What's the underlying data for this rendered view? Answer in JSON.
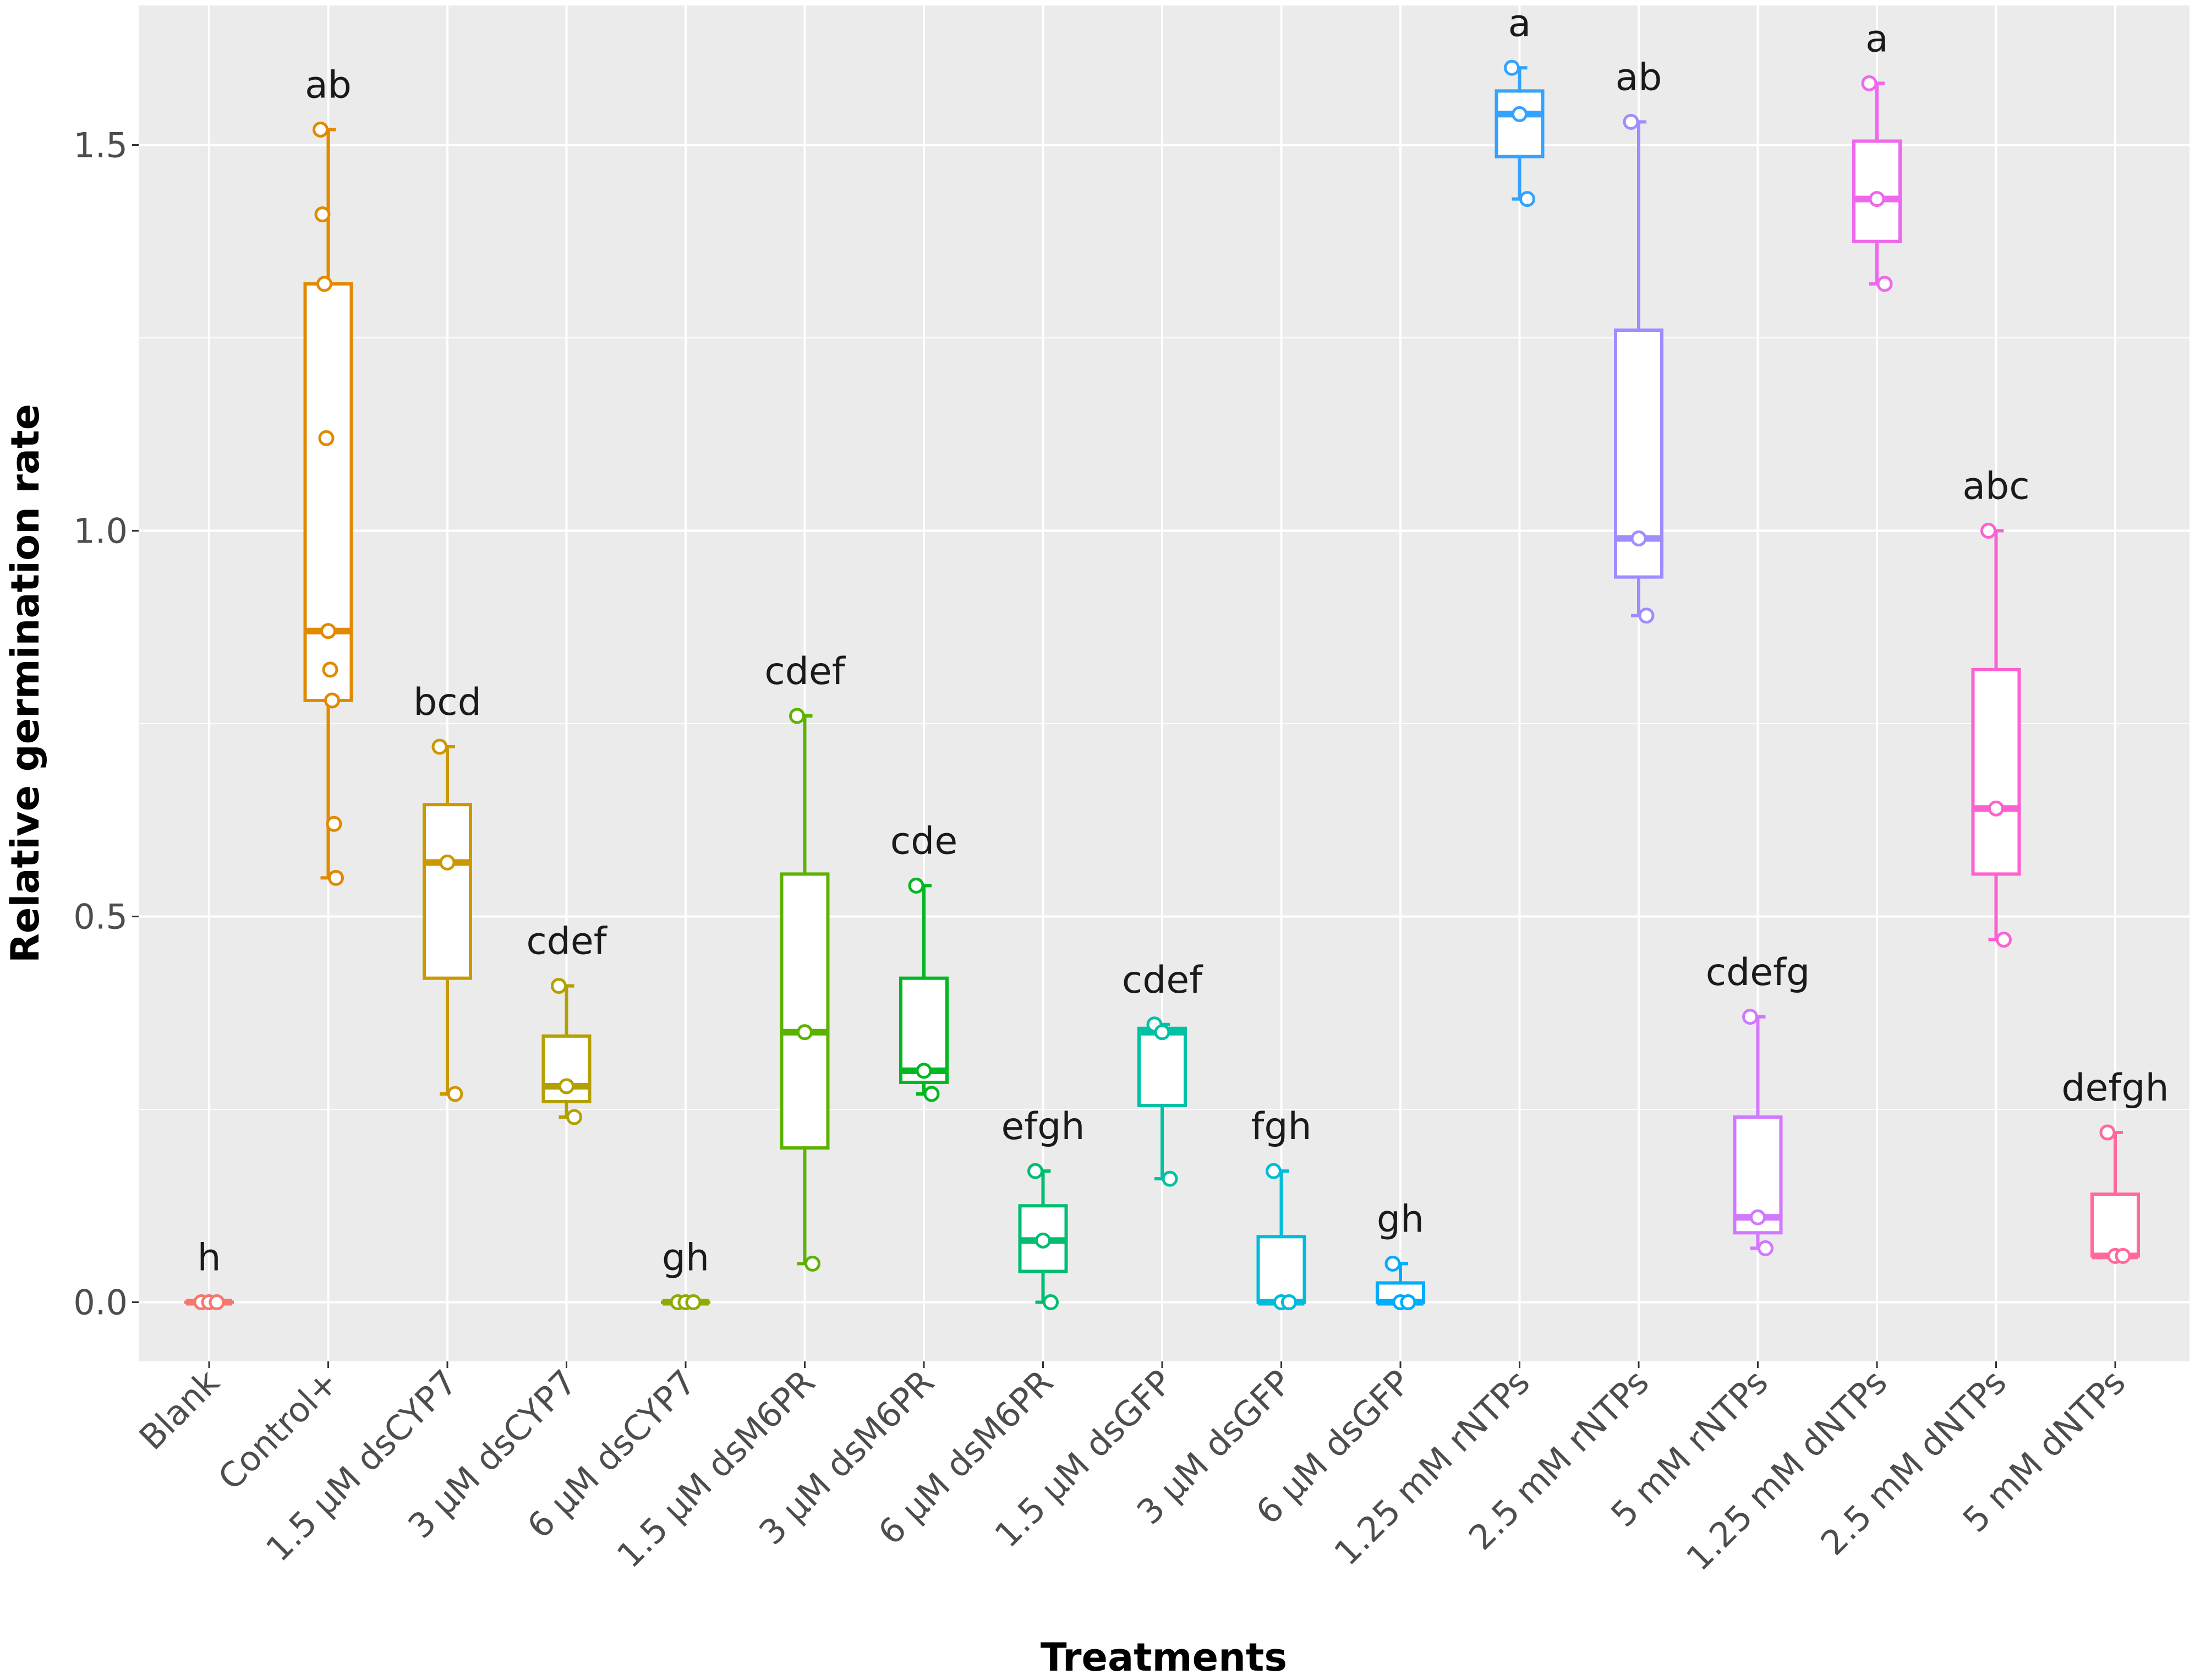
{
  "chart_data": {
    "type": "boxplot",
    "title": "",
    "xlabel": "Treatments",
    "ylabel": "Relative germination rate",
    "ylim": [
      -0.08,
      1.67
    ],
    "yticks": [
      0.0,
      0.5,
      1.0,
      1.5
    ],
    "ytick_labels": [
      "0.0",
      "0.5",
      "1.0",
      "1.5"
    ],
    "grid": true,
    "legend": "none",
    "categories": [
      "Blank",
      "Control+",
      "1.5 μM dsCYP7",
      "3 μM dsCYP7",
      "6 μM dsCYP7",
      "1.5 μM dsM6PR",
      "3 μM dsM6PR",
      "6 μM dsM6PR",
      "1.5 μM dsGFP",
      "3 μM dsGFP",
      "6 μM dsGFP",
      "1.25 mM rNTPs",
      "2.5 mM rNTPs",
      "5 mM rNTPs",
      "1.25 mM dNTPs",
      "2.5 mM dNTPs",
      "5 mM dNTPs"
    ],
    "boxes": [
      {
        "category": "Blank",
        "color": "#F8766D",
        "min": 0.0,
        "q1": 0.0,
        "median": 0.0,
        "q3": 0.0,
        "max": 0.0,
        "points": [
          0.0,
          0.0,
          0.0
        ],
        "letter": "h"
      },
      {
        "category": "Control+",
        "color": "#E18A00",
        "min": 0.55,
        "q1": 0.78,
        "median": 0.87,
        "q3": 1.32,
        "max": 1.52,
        "points": [
          1.52,
          1.41,
          1.32,
          1.12,
          0.87,
          0.82,
          0.78,
          0.62,
          0.55
        ],
        "letter": "ab"
      },
      {
        "category": "1.5 μM dsCYP7",
        "color": "#CC9800",
        "min": 0.27,
        "q1": 0.42,
        "median": 0.57,
        "q3": 0.645,
        "max": 0.72,
        "points": [
          0.72,
          0.57,
          0.27
        ],
        "letter": "bcd"
      },
      {
        "category": "3 μM dsCYP7",
        "color": "#B2A100",
        "min": 0.24,
        "q1": 0.26,
        "median": 0.28,
        "q3": 0.345,
        "max": 0.41,
        "points": [
          0.41,
          0.28,
          0.24
        ],
        "letter": "cdef"
      },
      {
        "category": "6 μM dsCYP7",
        "color": "#90AA00",
        "min": 0.0,
        "q1": 0.0,
        "median": 0.0,
        "q3": 0.0,
        "max": 0.0,
        "points": [
          0.0,
          0.0,
          0.0
        ],
        "letter": "gh"
      },
      {
        "category": "1.5 μM dsM6PR",
        "color": "#5BB300",
        "min": 0.05,
        "q1": 0.2,
        "median": 0.35,
        "q3": 0.555,
        "max": 0.76,
        "points": [
          0.76,
          0.35,
          0.05
        ],
        "letter": "cdef"
      },
      {
        "category": "3 μM dsM6PR",
        "color": "#00B81F",
        "min": 0.27,
        "q1": 0.285,
        "median": 0.3,
        "q3": 0.42,
        "max": 0.54,
        "points": [
          0.54,
          0.3,
          0.27
        ],
        "letter": "cde"
      },
      {
        "category": "6 μM dsM6PR",
        "color": "#00BE70",
        "min": 0.0,
        "q1": 0.04,
        "median": 0.08,
        "q3": 0.125,
        "max": 0.17,
        "points": [
          0.17,
          0.08,
          0.0
        ],
        "letter": "efgh"
      },
      {
        "category": "1.5 μM dsGFP",
        "color": "#00C1A3",
        "min": 0.16,
        "q1": 0.255,
        "median": 0.35,
        "q3": 0.355,
        "max": 0.36,
        "points": [
          0.36,
          0.35,
          0.16
        ],
        "letter": "cdef"
      },
      {
        "category": "3 μM dsGFP",
        "color": "#00BBDA",
        "min": 0.0,
        "q1": 0.0,
        "median": 0.0,
        "q3": 0.085,
        "max": 0.17,
        "points": [
          0.17,
          0.0,
          0.0
        ],
        "letter": "fgh"
      },
      {
        "category": "6 μM dsGFP",
        "color": "#00ACFC",
        "min": 0.0,
        "q1": 0.0,
        "median": 0.0,
        "q3": 0.025,
        "max": 0.05,
        "points": [
          0.05,
          0.0,
          0.0
        ],
        "letter": "gh"
      },
      {
        "category": "1.25 mM rNTPs",
        "color": "#35A2FF",
        "min": 1.43,
        "q1": 1.485,
        "median": 1.54,
        "q3": 1.57,
        "max": 1.6,
        "points": [
          1.6,
          1.54,
          1.43
        ],
        "letter": "a"
      },
      {
        "category": "2.5 mM rNTPs",
        "color": "#9F8CFF",
        "min": 0.89,
        "q1": 0.94,
        "median": 0.99,
        "q3": 1.26,
        "max": 1.53,
        "points": [
          1.53,
          0.99,
          0.89
        ],
        "letter": "ab"
      },
      {
        "category": "5 mM rNTPs",
        "color": "#D277FF",
        "min": 0.07,
        "q1": 0.09,
        "median": 0.11,
        "q3": 0.24,
        "max": 0.37,
        "points": [
          0.37,
          0.11,
          0.07
        ],
        "letter": "cdefg"
      },
      {
        "category": "1.25 mM dNTPs",
        "color": "#EE67EC",
        "min": 1.32,
        "q1": 1.375,
        "median": 1.43,
        "q3": 1.505,
        "max": 1.58,
        "points": [
          1.58,
          1.43,
          1.32
        ],
        "letter": "a"
      },
      {
        "category": "2.5 mM dNTPs",
        "color": "#FD61D1",
        "min": 0.47,
        "q1": 0.555,
        "median": 0.64,
        "q3": 0.82,
        "max": 1.0,
        "points": [
          1.0,
          0.64,
          0.47
        ],
        "letter": "abc"
      },
      {
        "category": "5 mM dNTPs",
        "color": "#FF6A9A",
        "min": 0.06,
        "q1": 0.06,
        "median": 0.06,
        "q3": 0.14,
        "max": 0.22,
        "points": [
          0.22,
          0.06,
          0.06
        ],
        "letter": "defgh"
      }
    ]
  }
}
